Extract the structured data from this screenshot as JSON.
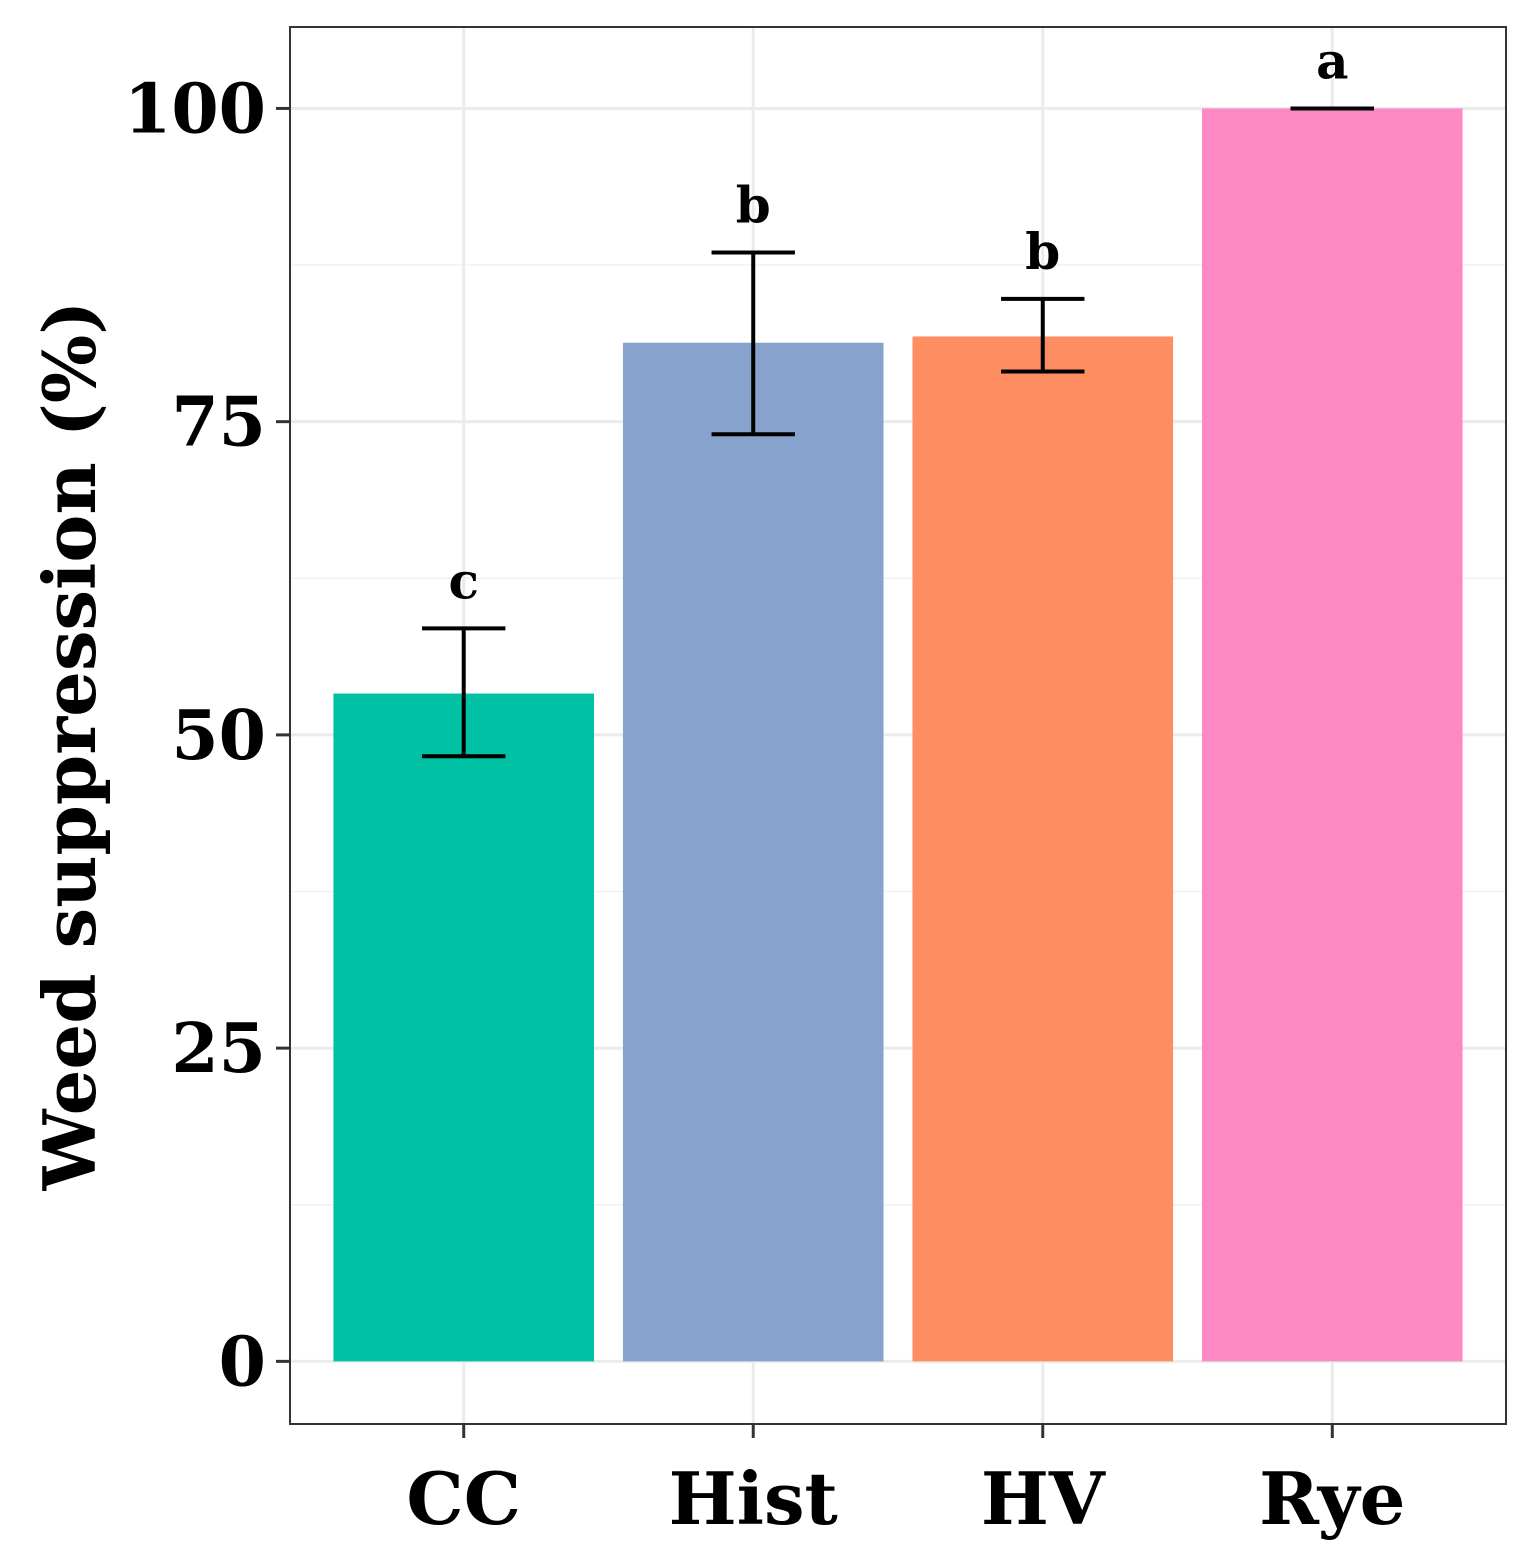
{
  "chart_data": {
    "type": "bar",
    "title": "",
    "xlabel": "",
    "ylabel": "Weed suppression (%)",
    "categories": [
      "CC",
      "Hist",
      "HV",
      "Rye"
    ],
    "values": [
      53.3,
      81.3,
      81.8,
      100
    ],
    "error_lower": [
      48.3,
      74.0,
      79.0,
      100
    ],
    "error_upper": [
      58.5,
      88.5,
      84.8,
      100
    ],
    "significance_letters": [
      "c",
      "b",
      "b",
      "a"
    ],
    "colors": [
      "#00c1a3",
      "#87a2cc",
      "#fe8d61",
      "#fd89c4"
    ],
    "ylim": [
      -5,
      106.5
    ],
    "yticks": [
      "0",
      "25",
      "50",
      "75",
      "100"
    ],
    "ytick_values": [
      0,
      25,
      50,
      75,
      100
    ],
    "grid": true
  }
}
